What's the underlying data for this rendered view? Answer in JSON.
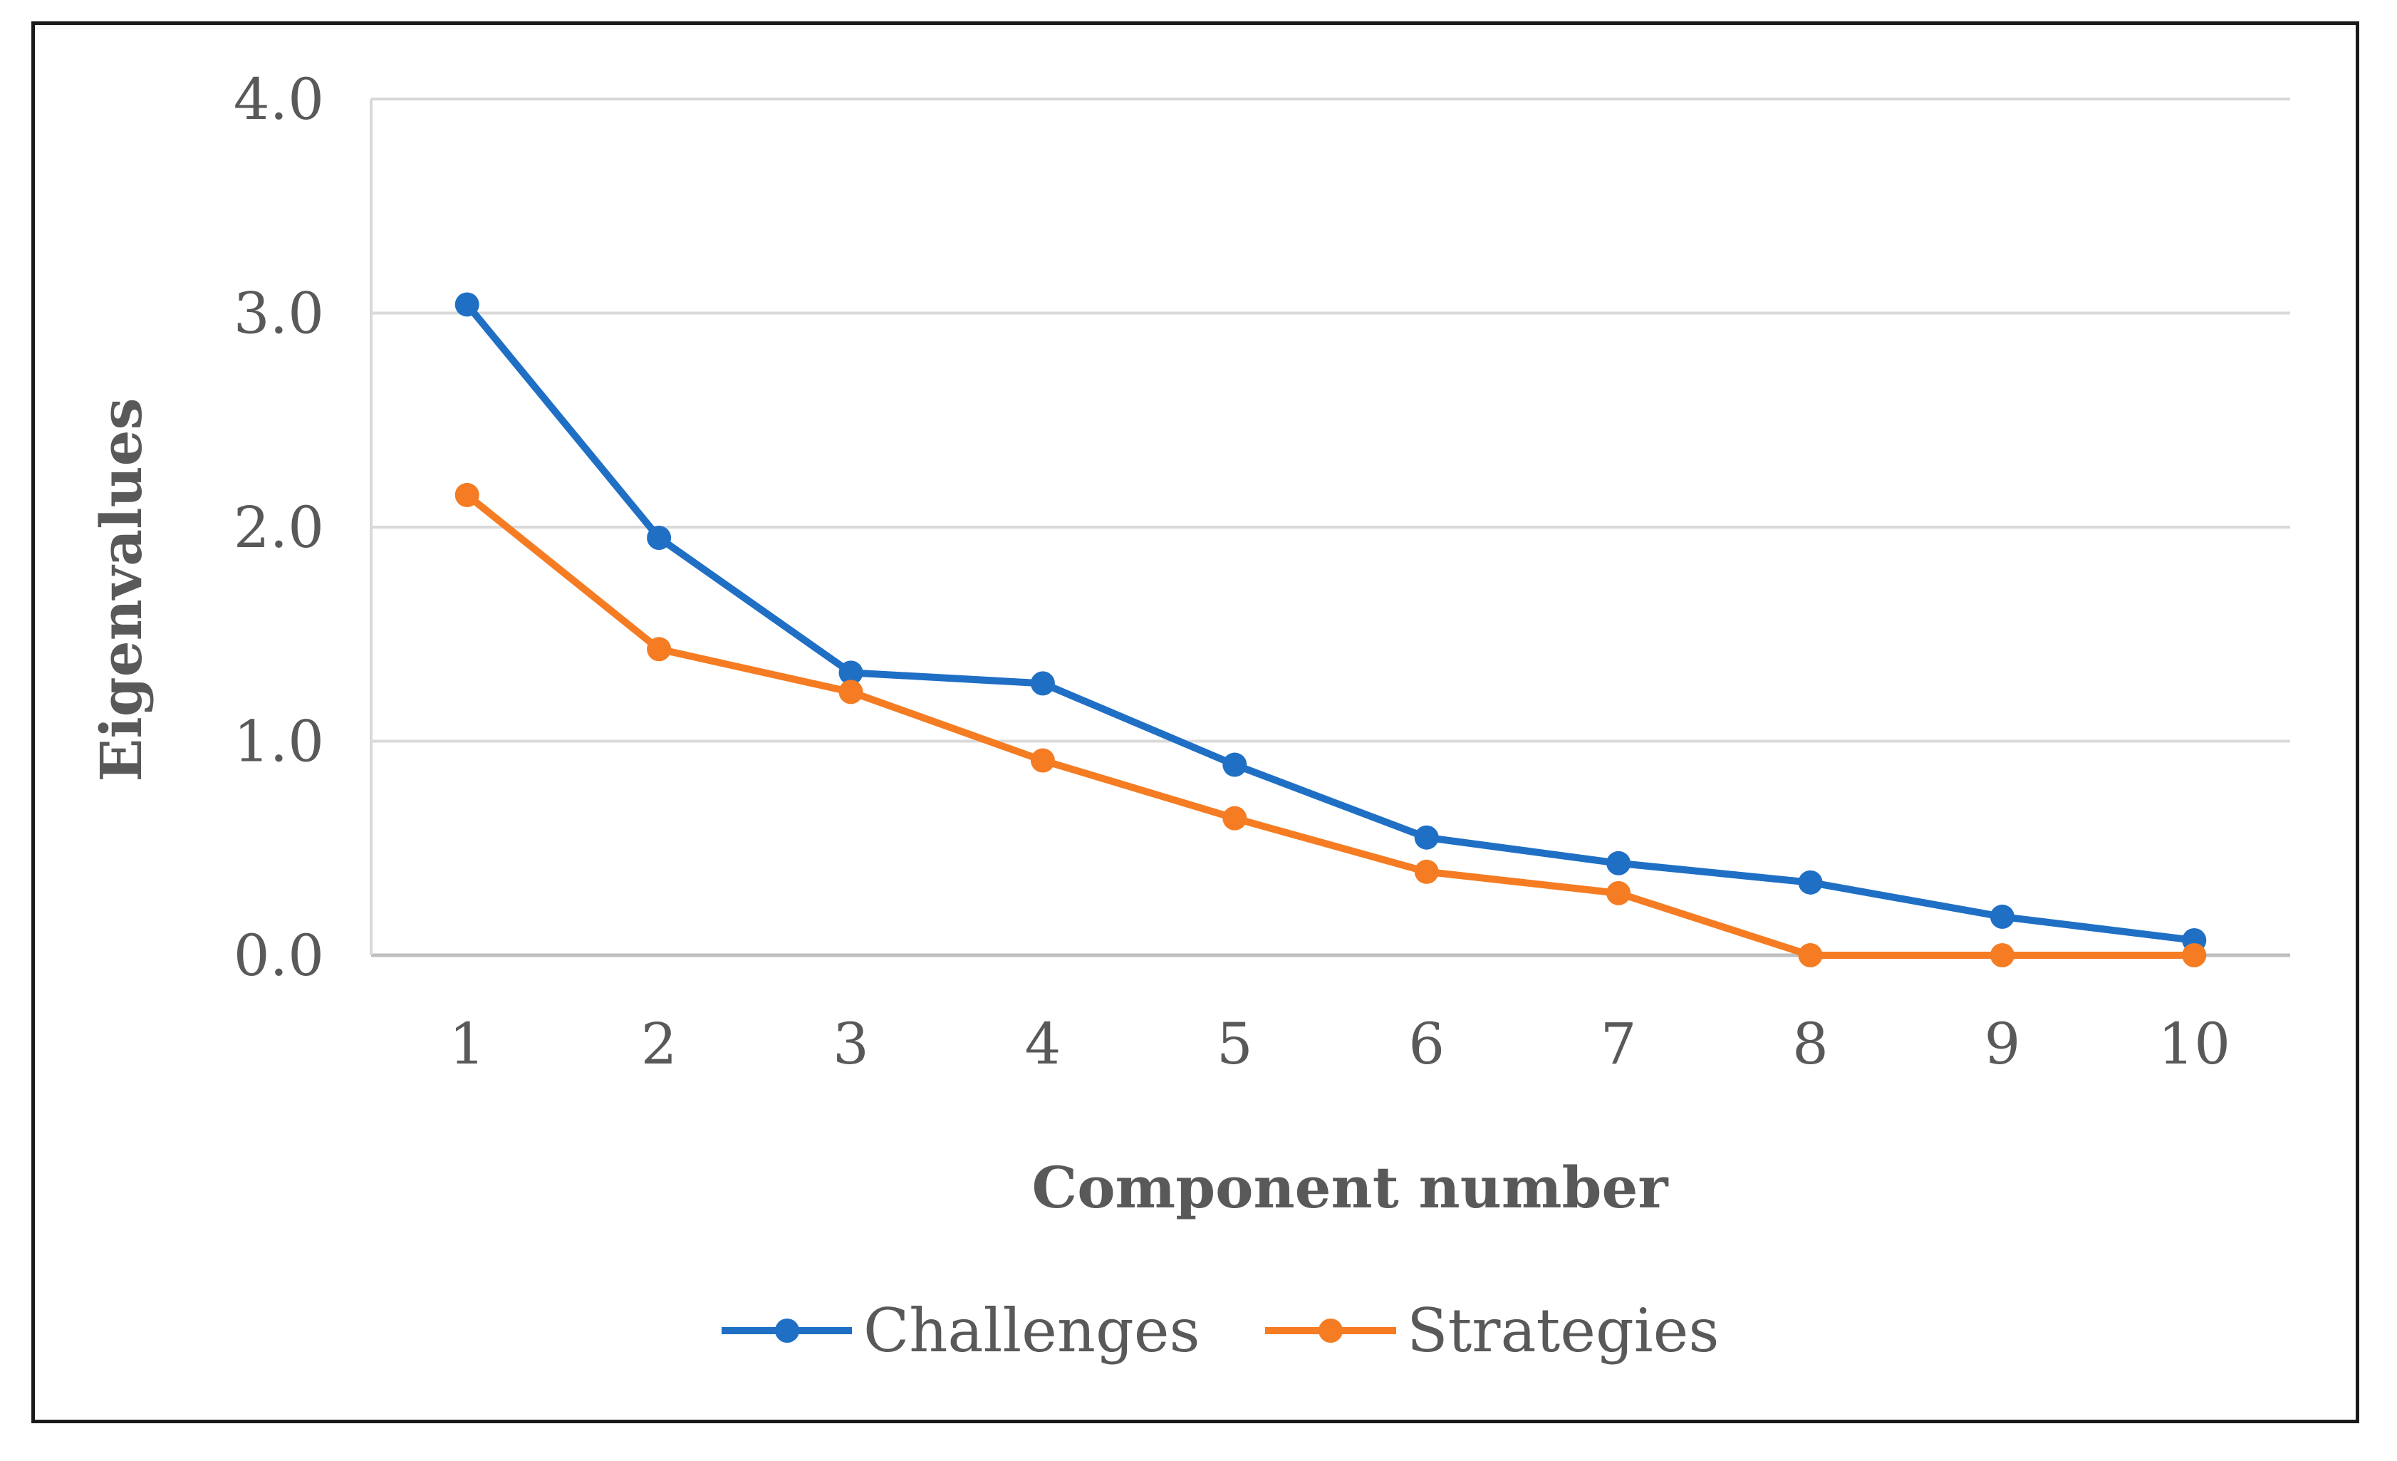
{
  "chart_data": {
    "type": "line",
    "title": "",
    "xlabel": "Component number",
    "ylabel": "Eigenvalues",
    "categories": [
      "1",
      "2",
      "3",
      "4",
      "5",
      "6",
      "7",
      "8",
      "9",
      "10"
    ],
    "y_ticks": [
      "0.0",
      "1.0",
      "2.0",
      "3.0",
      "4.0"
    ],
    "ylim": [
      0,
      4
    ],
    "grid": "horizontal",
    "legend_position": "bottom",
    "series": [
      {
        "name": "Challenges",
        "color": "#1f6fc5",
        "values": [
          3.04,
          1.95,
          1.32,
          1.27,
          0.89,
          0.55,
          0.43,
          0.34,
          0.18,
          0.07
        ]
      },
      {
        "name": "Strategies",
        "color": "#f57c22",
        "values": [
          2.15,
          1.43,
          1.23,
          0.91,
          0.64,
          0.39,
          0.29,
          0.0,
          0.0,
          0.0
        ]
      }
    ]
  }
}
